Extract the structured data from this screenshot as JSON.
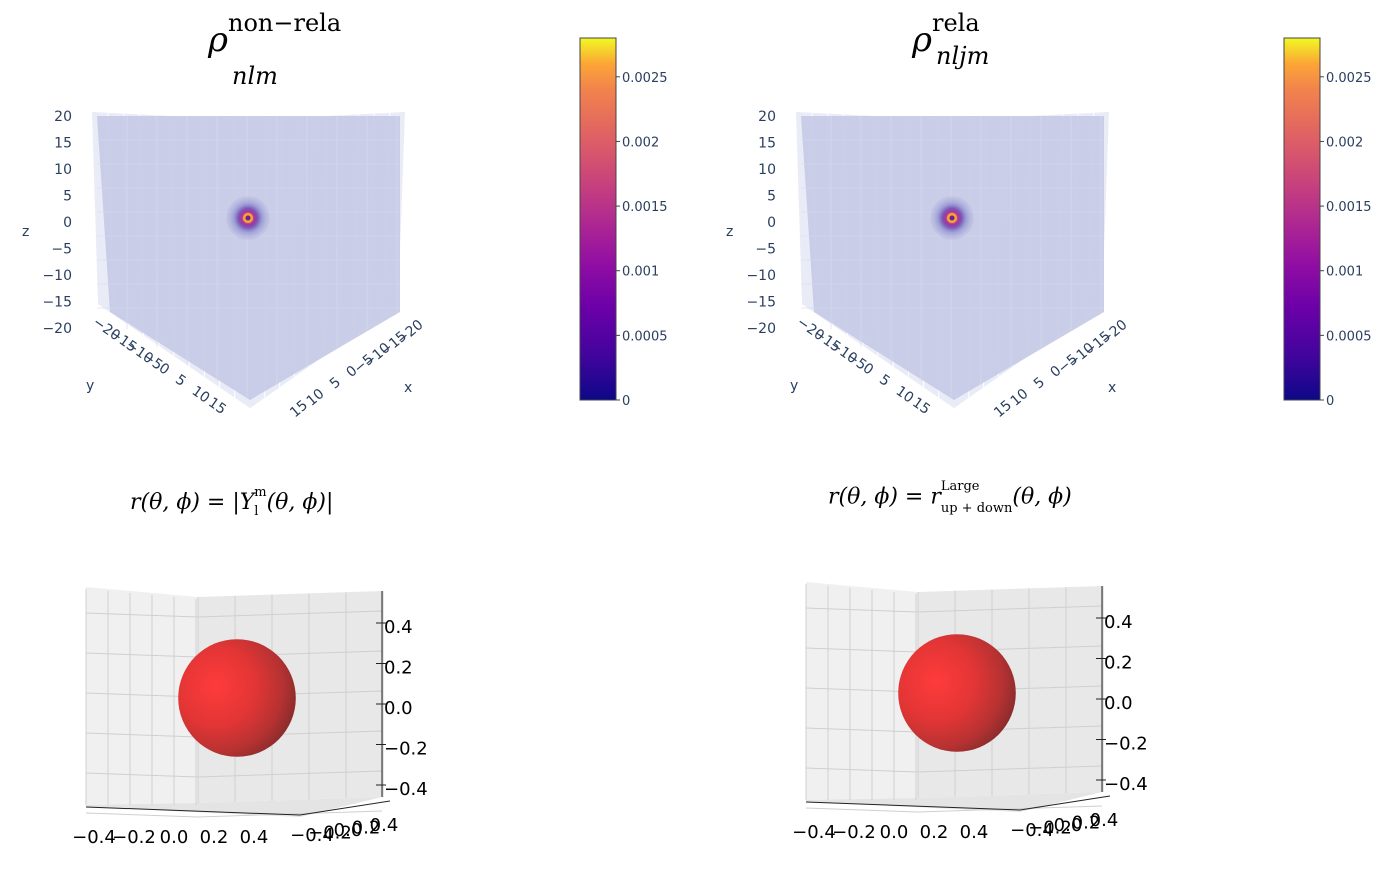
{
  "titles": {
    "left_base": "ρ",
    "left_sup": "non−rela",
    "left_sub": "nlm",
    "right_base": "ρ",
    "right_sup": "rela",
    "right_sub": "nljm"
  },
  "formulas": {
    "left_lhs": "r(θ, ϕ) = |Y",
    "left_sup": "m",
    "left_sub": "l",
    "left_rhs": "(θ, ϕ)|",
    "right_lhs": "r(θ, ϕ) = r",
    "right_sup": "Large",
    "right_sub": "up + down",
    "right_rhs": "(θ, ϕ)"
  },
  "colors": {
    "accent_red": "#d63a3a",
    "plotly_axis_text": "#2a3f5f",
    "scene_fill": "#c7cbe6"
  },
  "chart_data": [
    {
      "type": "heatmap",
      "panel": "top-left",
      "subtype": "3d-volume-density",
      "z_ticks": [
        "20",
        "15",
        "10",
        "5",
        "0",
        "−5",
        "−10",
        "−15",
        "−20"
      ],
      "y_ticks": [
        "−20",
        "−15",
        "−10",
        "−5",
        "0",
        "5",
        "10",
        "15"
      ],
      "x_ticks": [
        "−20",
        "−15",
        "−10",
        "−5",
        "0",
        "5",
        "10",
        "15"
      ],
      "axis_labels": {
        "x": "x",
        "y": "y",
        "z": "z"
      },
      "zlim": [
        -20,
        20
      ],
      "colorbar": {
        "ticks": [
          "0",
          "0.0005",
          "0.001",
          "0.0015",
          "0.002",
          "0.0025"
        ],
        "range": [
          0,
          0.0028
        ],
        "colorscale": "plasma"
      },
      "density_peak": {
        "x": 0,
        "y": 0,
        "z": 0
      }
    },
    {
      "type": "heatmap",
      "panel": "top-right",
      "subtype": "3d-volume-density",
      "z_ticks": [
        "20",
        "15",
        "10",
        "5",
        "0",
        "−5",
        "−10",
        "−15",
        "−20"
      ],
      "y_ticks": [
        "−20",
        "−15",
        "−10",
        "−5",
        "0",
        "5",
        "10",
        "15"
      ],
      "x_ticks": [
        "−20",
        "−15",
        "−10",
        "−5",
        "0",
        "5",
        "10",
        "15"
      ],
      "axis_labels": {
        "x": "x",
        "y": "y",
        "z": "z"
      },
      "zlim": [
        -20,
        20
      ],
      "colorbar": {
        "ticks": [
          "0",
          "0.0005",
          "0.001",
          "0.0015",
          "0.002",
          "0.0025"
        ],
        "range": [
          0,
          0.0028
        ],
        "colorscale": "plasma"
      },
      "density_peak": {
        "x": 0,
        "y": 0,
        "z": 0
      }
    },
    {
      "type": "scatter",
      "panel": "bottom-left",
      "subtype": "3d-surface-sphere",
      "z_ticks": [
        "0.4",
        "0.2",
        "0.0",
        "−0.2",
        "−0.4"
      ],
      "x_ticks": [
        "−0.4",
        "−0.2",
        "0.0",
        "0.2",
        "0.4"
      ],
      "y_ticks": [
        "−0.4",
        "−0.2",
        "0.0",
        "0.2",
        "0.4"
      ],
      "surface_color": "#e03a3a",
      "sphere_radius": 0.28
    },
    {
      "type": "scatter",
      "panel": "bottom-right",
      "subtype": "3d-surface-sphere",
      "z_ticks": [
        "0.4",
        "0.2",
        "0.0",
        "−0.2",
        "−0.4"
      ],
      "x_ticks": [
        "−0.4",
        "−0.2",
        "0.0",
        "0.2",
        "0.4"
      ],
      "y_ticks": [
        "−0.4",
        "−0.2",
        "0.0",
        "0.2",
        "0.4"
      ],
      "surface_color": "#e03a3a",
      "sphere_radius": 0.28
    }
  ]
}
